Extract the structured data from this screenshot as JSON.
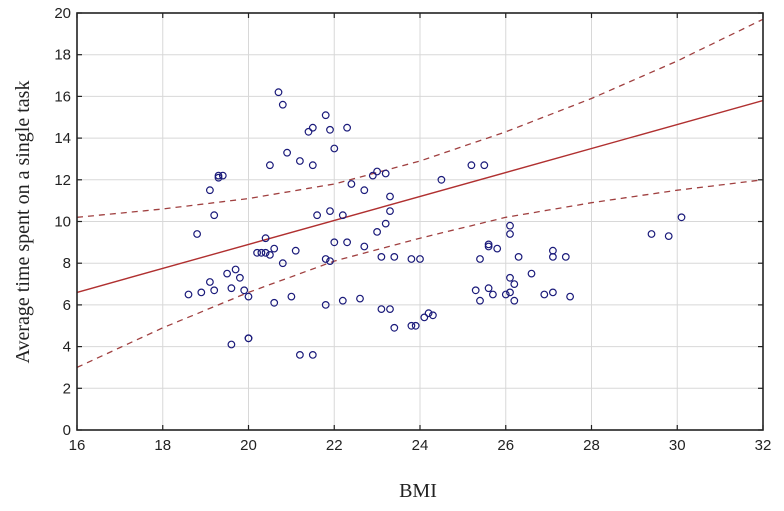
{
  "chart_data": {
    "type": "scatter",
    "title": "",
    "xlabel": "BMI",
    "ylabel": "Average time spent on a single task",
    "xlim": [
      16,
      32
    ],
    "ylim": [
      0,
      20
    ],
    "xticks": [
      16,
      18,
      20,
      22,
      24,
      26,
      28,
      30,
      32
    ],
    "yticks": [
      0,
      2,
      4,
      6,
      8,
      10,
      12,
      14,
      16,
      18,
      20
    ],
    "grid": true,
    "legend": null,
    "colors": {
      "points": "#1a1a7a",
      "fit_line": "#b03030",
      "confidence_band": "#a04040",
      "grid": "#d8d8d8",
      "axis": "#222222"
    },
    "series": [
      {
        "name": "observations",
        "points": [
          [
            18.6,
            6.5
          ],
          [
            18.8,
            9.4
          ],
          [
            18.9,
            6.6
          ],
          [
            19.1,
            11.5
          ],
          [
            19.1,
            7.1
          ],
          [
            19.2,
            10.3
          ],
          [
            19.2,
            6.7
          ],
          [
            19.3,
            12.2
          ],
          [
            19.3,
            12.1
          ],
          [
            19.4,
            12.2
          ],
          [
            19.5,
            7.5
          ],
          [
            19.6,
            4.1
          ],
          [
            19.6,
            6.8
          ],
          [
            19.7,
            7.7
          ],
          [
            19.8,
            7.3
          ],
          [
            19.9,
            6.7
          ],
          [
            20.0,
            4.4
          ],
          [
            20.0,
            4.4
          ],
          [
            20.0,
            6.4
          ],
          [
            20.2,
            8.5
          ],
          [
            20.3,
            8.5
          ],
          [
            20.4,
            8.5
          ],
          [
            20.4,
            9.2
          ],
          [
            20.5,
            12.7
          ],
          [
            20.5,
            8.4
          ],
          [
            20.6,
            8.7
          ],
          [
            20.6,
            6.1
          ],
          [
            20.7,
            16.2
          ],
          [
            20.8,
            15.6
          ],
          [
            20.8,
            8.0
          ],
          [
            20.9,
            13.3
          ],
          [
            21.0,
            6.4
          ],
          [
            21.1,
            8.6
          ],
          [
            21.2,
            12.9
          ],
          [
            21.2,
            3.6
          ],
          [
            21.4,
            14.3
          ],
          [
            21.5,
            14.5
          ],
          [
            21.5,
            12.7
          ],
          [
            21.5,
            3.6
          ],
          [
            21.6,
            10.3
          ],
          [
            21.8,
            15.1
          ],
          [
            21.8,
            8.2
          ],
          [
            21.8,
            6.0
          ],
          [
            21.9,
            14.4
          ],
          [
            21.9,
            10.5
          ],
          [
            21.9,
            8.1
          ],
          [
            22.0,
            13.5
          ],
          [
            22.0,
            9.0
          ],
          [
            22.2,
            10.3
          ],
          [
            22.2,
            6.2
          ],
          [
            22.3,
            14.5
          ],
          [
            22.3,
            9.0
          ],
          [
            22.4,
            11.8
          ],
          [
            22.6,
            6.3
          ],
          [
            22.7,
            8.8
          ],
          [
            22.7,
            11.5
          ],
          [
            22.9,
            12.2
          ],
          [
            23.0,
            12.4
          ],
          [
            23.0,
            9.5
          ],
          [
            23.1,
            8.3
          ],
          [
            23.1,
            5.8
          ],
          [
            23.2,
            12.3
          ],
          [
            23.2,
            9.9
          ],
          [
            23.3,
            11.2
          ],
          [
            23.3,
            10.5
          ],
          [
            23.3,
            5.8
          ],
          [
            23.4,
            8.3
          ],
          [
            23.4,
            4.9
          ],
          [
            23.8,
            8.2
          ],
          [
            23.8,
            5.0
          ],
          [
            23.9,
            5.0
          ],
          [
            24.0,
            8.2
          ],
          [
            24.1,
            5.4
          ],
          [
            24.2,
            5.6
          ],
          [
            24.3,
            5.5
          ],
          [
            24.5,
            12.0
          ],
          [
            25.2,
            12.7
          ],
          [
            25.3,
            6.7
          ],
          [
            25.4,
            8.2
          ],
          [
            25.4,
            6.2
          ],
          [
            25.5,
            12.7
          ],
          [
            25.6,
            8.9
          ],
          [
            25.6,
            8.8
          ],
          [
            25.6,
            6.8
          ],
          [
            25.7,
            6.5
          ],
          [
            25.8,
            8.7
          ],
          [
            26.0,
            6.5
          ],
          [
            26.1,
            9.8
          ],
          [
            26.1,
            9.4
          ],
          [
            26.1,
            7.3
          ],
          [
            26.1,
            6.6
          ],
          [
            26.2,
            6.2
          ],
          [
            26.2,
            7.0
          ],
          [
            26.3,
            8.3
          ],
          [
            26.6,
            7.5
          ],
          [
            26.9,
            6.5
          ],
          [
            27.1,
            8.3
          ],
          [
            27.1,
            8.6
          ],
          [
            27.1,
            6.6
          ],
          [
            27.4,
            8.3
          ],
          [
            27.5,
            6.4
          ],
          [
            29.4,
            9.4
          ],
          [
            29.8,
            9.3
          ],
          [
            30.1,
            10.2
          ]
        ]
      }
    ],
    "fit": {
      "type": "linear",
      "start": [
        16,
        6.6
      ],
      "end": [
        32,
        15.8
      ],
      "style": "solid"
    },
    "confidence_bands": {
      "style": "dashed",
      "upper": [
        [
          16,
          10.2
        ],
        [
          18,
          10.6
        ],
        [
          20,
          11.1
        ],
        [
          22,
          11.8
        ],
        [
          24,
          12.9
        ],
        [
          26,
          14.3
        ],
        [
          28,
          15.9
        ],
        [
          30,
          17.7
        ],
        [
          32,
          19.7
        ]
      ],
      "lower": [
        [
          16,
          3.0
        ],
        [
          18,
          4.9
        ],
        [
          20,
          6.6
        ],
        [
          22,
          8.1
        ],
        [
          24,
          9.2
        ],
        [
          26,
          10.2
        ],
        [
          28,
          10.9
        ],
        [
          30,
          11.5
        ],
        [
          32,
          12.0
        ]
      ]
    }
  }
}
